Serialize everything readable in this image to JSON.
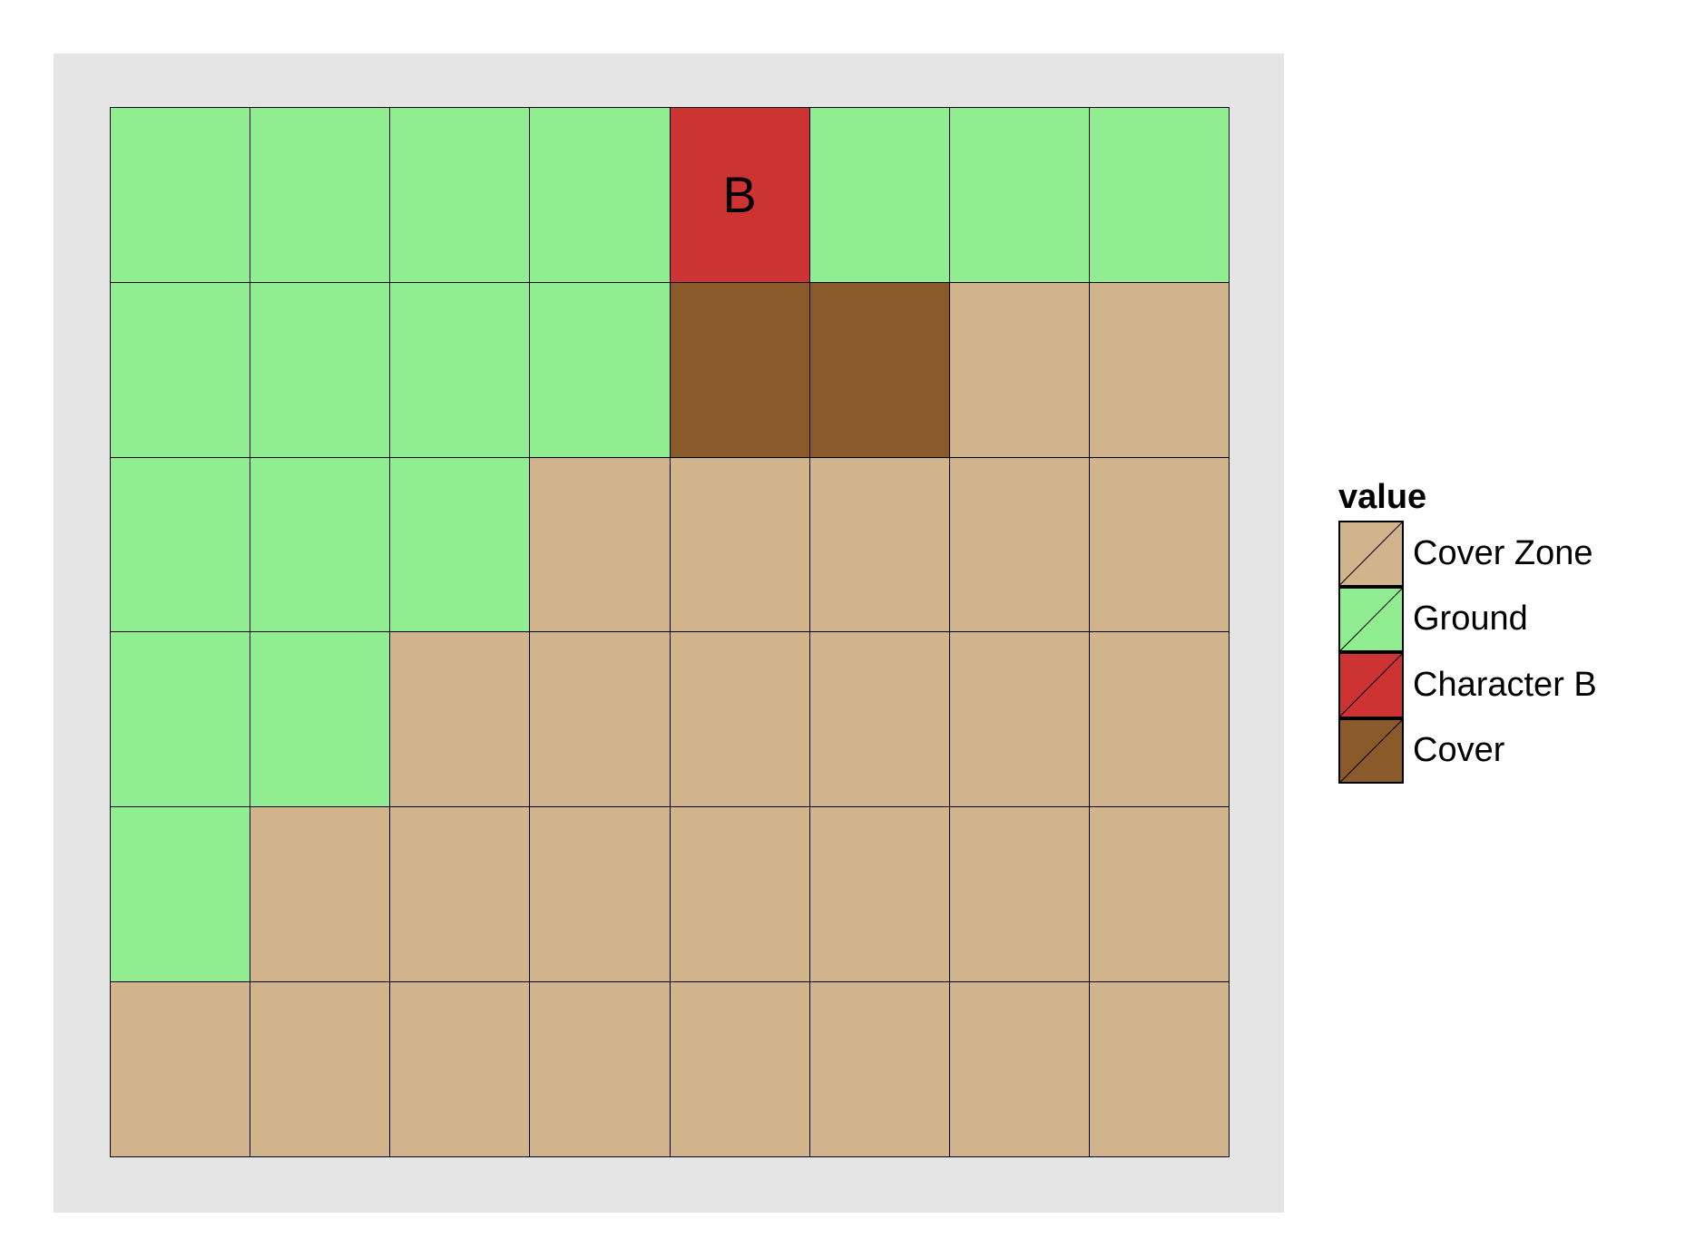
{
  "legend": {
    "title": "value",
    "items": [
      {
        "key": "cover_zone",
        "label": "Cover Zone",
        "color": "#d2b48c"
      },
      {
        "key": "ground",
        "label": "Ground",
        "color": "#90ee90"
      },
      {
        "key": "character_b",
        "label": "Character B",
        "color": "#cd3333"
      },
      {
        "key": "cover",
        "label": "Cover",
        "color": "#8b5a2b"
      }
    ]
  },
  "board": {
    "rows": 6,
    "cols": 8,
    "cells": [
      [
        "ground",
        "ground",
        "ground",
        "ground",
        "character_b",
        "ground",
        "ground",
        "ground"
      ],
      [
        "ground",
        "ground",
        "ground",
        "ground",
        "cover",
        "cover",
        "cover_zone",
        "cover_zone"
      ],
      [
        "ground",
        "ground",
        "ground",
        "cover_zone",
        "cover_zone",
        "cover_zone",
        "cover_zone",
        "cover_zone"
      ],
      [
        "ground",
        "ground",
        "cover_zone",
        "cover_zone",
        "cover_zone",
        "cover_zone",
        "cover_zone",
        "cover_zone"
      ],
      [
        "ground",
        "cover_zone",
        "cover_zone",
        "cover_zone",
        "cover_zone",
        "cover_zone",
        "cover_zone",
        "cover_zone"
      ],
      [
        "cover_zone",
        "cover_zone",
        "cover_zone",
        "cover_zone",
        "cover_zone",
        "cover_zone",
        "cover_zone",
        "cover_zone"
      ]
    ],
    "labels": [
      {
        "row": 0,
        "col": 4,
        "text": "B"
      }
    ]
  }
}
